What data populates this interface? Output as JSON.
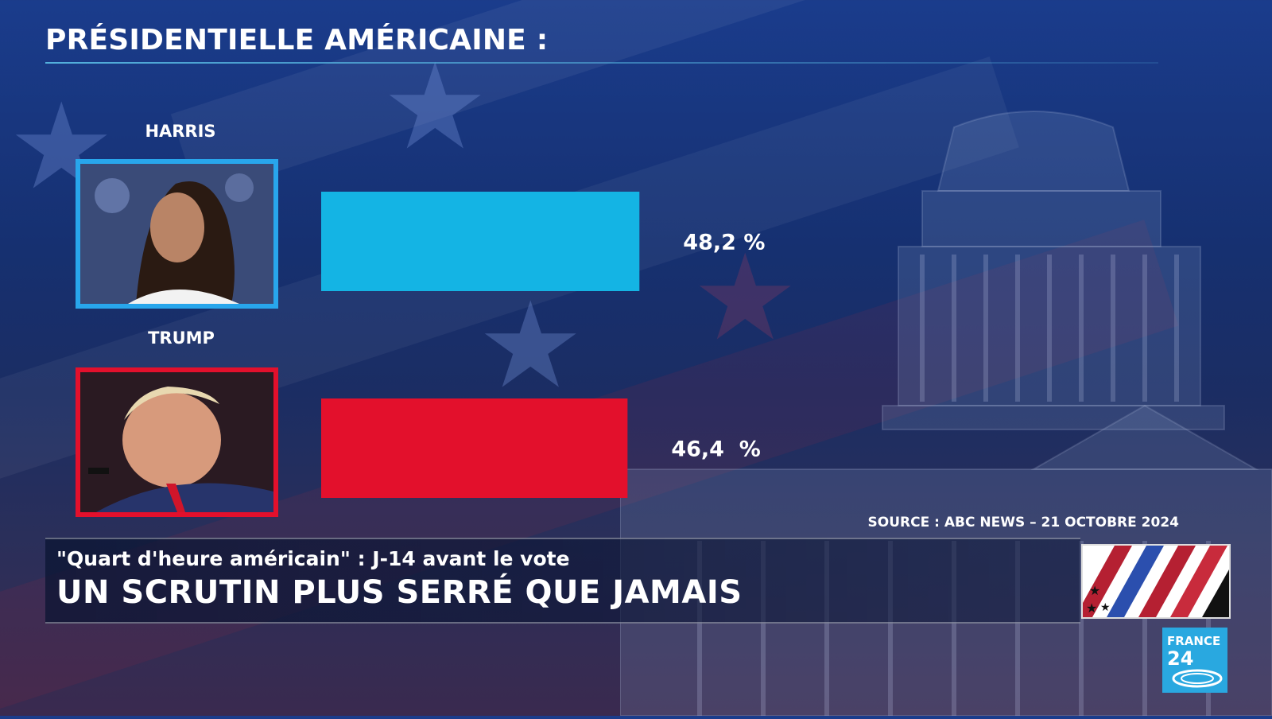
{
  "headline": "PRÉSIDENTIELLE AMÉRICAINE :",
  "source": "SOURCE : ABC NEWS – 21 OCTOBRE 2024",
  "lower_third": {
    "show": "\"Quart d'heure américain\" : J-14 avant le vote",
    "title": "UN SCRUTIN PLUS SERRÉ QUE JAMAIS"
  },
  "logo": {
    "line1": "FRANCE",
    "line2": "24"
  },
  "chart_data": {
    "type": "bar",
    "orientation": "horizontal",
    "categories": [
      "HARRIS",
      "TRUMP"
    ],
    "values": [
      48.2,
      46.4
    ],
    "value_labels": [
      "48,2 %",
      "46,4  %"
    ],
    "colors": [
      "#14b4e4",
      "#e3102c"
    ],
    "title": "PRÉSIDENTIELLE AMÉRICAINE :",
    "xlabel": "",
    "ylabel": "",
    "xlim": [
      0,
      100
    ],
    "grid": false
  }
}
